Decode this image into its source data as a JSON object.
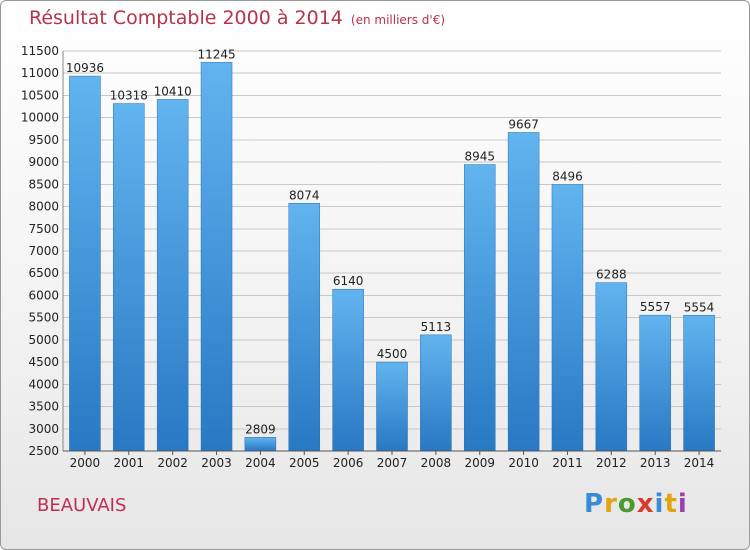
{
  "header": {
    "title": "Résultat Comptable 2000 à 2014",
    "subtitle": "(en milliers d'€)"
  },
  "footer": {
    "city": "BEAUVAIS",
    "logo": {
      "letters": [
        "P",
        "r",
        "o",
        "x",
        "i",
        "t",
        "i"
      ],
      "colors": [
        "#3a8ad6",
        "#e2a30f",
        "#4a9a2f",
        "#d93a2b",
        "#3a8ad6",
        "#e2a30f",
        "#9b3fae"
      ]
    }
  },
  "chart_data": {
    "type": "bar",
    "categories": [
      "2000",
      "2001",
      "2002",
      "2003",
      "2004",
      "2005",
      "2006",
      "2007",
      "2008",
      "2009",
      "2010",
      "2011",
      "2012",
      "2013",
      "2014"
    ],
    "values": [
      10936,
      10318,
      10410,
      11245,
      2809,
      8074,
      6140,
      4500,
      5113,
      8945,
      9667,
      8496,
      6288,
      5557,
      5554
    ],
    "ylim": [
      2500,
      11500
    ],
    "yticks": [
      2500,
      3000,
      3500,
      4000,
      4500,
      5000,
      5500,
      6000,
      6500,
      7000,
      7500,
      8000,
      8500,
      9000,
      9500,
      10000,
      10500,
      11000,
      11500
    ],
    "grid": true,
    "bar_color": "#3d8fdb"
  }
}
